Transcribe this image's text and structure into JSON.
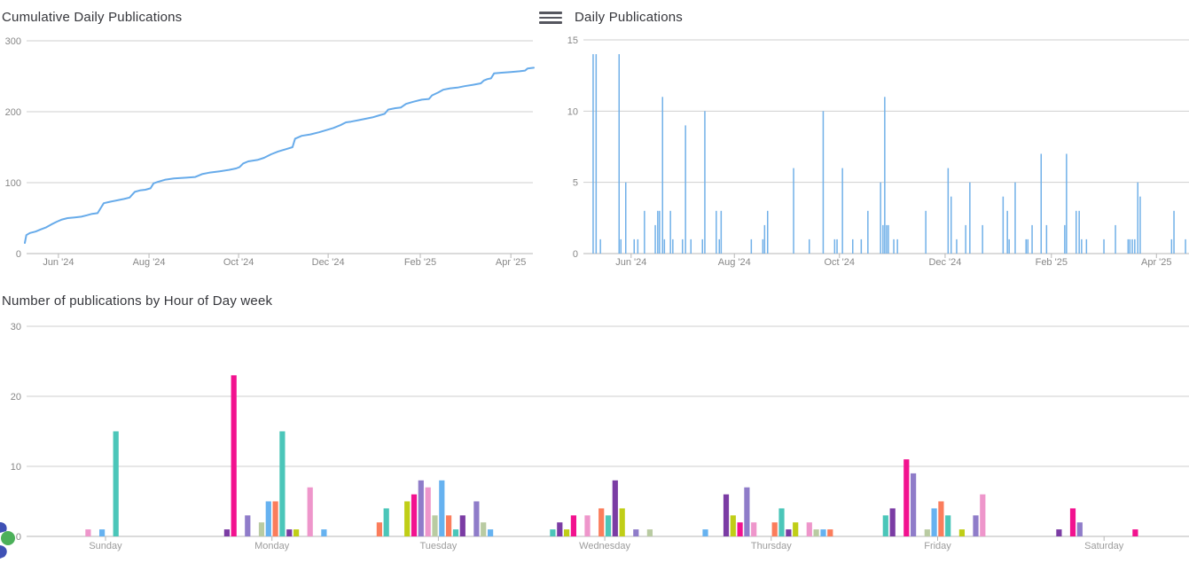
{
  "menu": {
    "icon": "hamburger-icon"
  },
  "logo": {
    "icon": "clipped-logo-fragment",
    "circle_color": "#4CB05A",
    "wedge_color": "#3F51B5"
  },
  "axis_style": {
    "label_color": "#878787",
    "grid_color": "#cfcfcf",
    "axis_color": "#b7b7b7"
  },
  "chart_data": [
    {
      "type": "line",
      "title": "Cumulative Daily Publications",
      "line_color": "#67ABEA",
      "ylim": [
        0,
        300
      ],
      "y_ticks": [
        0,
        100,
        200,
        300
      ],
      "x_ticks": [
        {
          "label": "Jun '24",
          "pos": 0.066
        },
        {
          "label": "Aug '24",
          "pos": 0.244
        },
        {
          "label": "Oct '24",
          "pos": 0.42
        },
        {
          "label": "Dec '24",
          "pos": 0.596
        },
        {
          "label": "Feb '25",
          "pos": 0.777
        },
        {
          "label": "Apr '25",
          "pos": 0.955
        }
      ],
      "points": [
        [
          0.0,
          15
        ],
        [
          0.003,
          26
        ],
        [
          0.01,
          29
        ],
        [
          0.021,
          31
        ],
        [
          0.031,
          34
        ],
        [
          0.042,
          37
        ],
        [
          0.052,
          41
        ],
        [
          0.063,
          45
        ],
        [
          0.073,
          48
        ],
        [
          0.084,
          50
        ],
        [
          0.098,
          51
        ],
        [
          0.111,
          52
        ],
        [
          0.122,
          54
        ],
        [
          0.132,
          56
        ],
        [
          0.143,
          57
        ],
        [
          0.148,
          63
        ],
        [
          0.155,
          71
        ],
        [
          0.167,
          73
        ],
        [
          0.181,
          75
        ],
        [
          0.195,
          77
        ],
        [
          0.206,
          79
        ],
        [
          0.211,
          83
        ],
        [
          0.216,
          87
        ],
        [
          0.226,
          89
        ],
        [
          0.237,
          90
        ],
        [
          0.247,
          92
        ],
        [
          0.253,
          99
        ],
        [
          0.261,
          101
        ],
        [
          0.275,
          104
        ],
        [
          0.293,
          106
        ],
        [
          0.317,
          107
        ],
        [
          0.335,
          108
        ],
        [
          0.348,
          112
        ],
        [
          0.362,
          114
        ],
        [
          0.383,
          116
        ],
        [
          0.401,
          118
        ],
        [
          0.415,
          120
        ],
        [
          0.422,
          122
        ],
        [
          0.429,
          127
        ],
        [
          0.439,
          130
        ],
        [
          0.457,
          132
        ],
        [
          0.47,
          135
        ],
        [
          0.484,
          140
        ],
        [
          0.498,
          144
        ],
        [
          0.512,
          147
        ],
        [
          0.526,
          150
        ],
        [
          0.531,
          162
        ],
        [
          0.544,
          166
        ],
        [
          0.561,
          168
        ],
        [
          0.578,
          171
        ],
        [
          0.592,
          174
        ],
        [
          0.606,
          177
        ],
        [
          0.62,
          181
        ],
        [
          0.631,
          185
        ],
        [
          0.641,
          186
        ],
        [
          0.655,
          188
        ],
        [
          0.669,
          190
        ],
        [
          0.683,
          192
        ],
        [
          0.697,
          195
        ],
        [
          0.707,
          197
        ],
        [
          0.714,
          203
        ],
        [
          0.728,
          205
        ],
        [
          0.739,
          206
        ],
        [
          0.749,
          211
        ],
        [
          0.763,
          214
        ],
        [
          0.78,
          217
        ],
        [
          0.794,
          218
        ],
        [
          0.8,
          223
        ],
        [
          0.812,
          227
        ],
        [
          0.822,
          231
        ],
        [
          0.836,
          233
        ],
        [
          0.85,
          234
        ],
        [
          0.864,
          236
        ],
        [
          0.881,
          238
        ],
        [
          0.896,
          240
        ],
        [
          0.902,
          244
        ],
        [
          0.909,
          246
        ],
        [
          0.916,
          247
        ],
        [
          0.922,
          254
        ],
        [
          0.937,
          255
        ],
        [
          0.955,
          256
        ],
        [
          0.972,
          257
        ],
        [
          0.983,
          258
        ],
        [
          0.988,
          261
        ],
        [
          1.0,
          262
        ]
      ]
    },
    {
      "type": "bar",
      "title": "Daily Publications",
      "bar_color": "#71B0E8",
      "ylim": [
        0,
        15
      ],
      "y_ticks": [
        0,
        5,
        10,
        15
      ],
      "x_ticks": [
        {
          "label": "Jun '24",
          "pos": 0.079
        },
        {
          "label": "Aug '24",
          "pos": 0.25
        },
        {
          "label": "Oct '24",
          "pos": 0.424
        },
        {
          "label": "Dec '24",
          "pos": 0.599
        },
        {
          "label": "Feb '25",
          "pos": 0.775
        },
        {
          "label": "Apr '25",
          "pos": 0.949
        }
      ],
      "bars": [
        [
          0.016,
          14
        ],
        [
          0.021,
          14
        ],
        [
          0.028,
          1
        ],
        [
          0.059,
          14
        ],
        [
          0.062,
          1
        ],
        [
          0.07,
          5
        ],
        [
          0.084,
          1
        ],
        [
          0.09,
          1
        ],
        [
          0.101,
          3
        ],
        [
          0.119,
          2
        ],
        [
          0.123,
          3
        ],
        [
          0.126,
          3
        ],
        [
          0.131,
          11
        ],
        [
          0.134,
          1
        ],
        [
          0.144,
          3
        ],
        [
          0.148,
          1
        ],
        [
          0.164,
          1
        ],
        [
          0.169,
          9
        ],
        [
          0.178,
          1
        ],
        [
          0.197,
          1
        ],
        [
          0.201,
          10
        ],
        [
          0.22,
          3
        ],
        [
          0.225,
          1
        ],
        [
          0.228,
          3
        ],
        [
          0.278,
          1
        ],
        [
          0.297,
          1
        ],
        [
          0.3,
          2
        ],
        [
          0.305,
          3
        ],
        [
          0.348,
          6
        ],
        [
          0.374,
          1
        ],
        [
          0.397,
          10
        ],
        [
          0.416,
          1
        ],
        [
          0.42,
          1
        ],
        [
          0.429,
          6
        ],
        [
          0.446,
          1
        ],
        [
          0.46,
          1
        ],
        [
          0.471,
          3
        ],
        [
          0.492,
          5
        ],
        [
          0.496,
          2
        ],
        [
          0.499,
          11
        ],
        [
          0.502,
          2
        ],
        [
          0.505,
          2
        ],
        [
          0.514,
          1
        ],
        [
          0.52,
          1
        ],
        [
          0.567,
          3
        ],
        [
          0.604,
          6
        ],
        [
          0.609,
          4
        ],
        [
          0.618,
          1
        ],
        [
          0.633,
          2
        ],
        [
          0.64,
          5
        ],
        [
          0.661,
          2
        ],
        [
          0.695,
          4
        ],
        [
          0.702,
          3
        ],
        [
          0.705,
          1
        ],
        [
          0.715,
          5
        ],
        [
          0.733,
          1
        ],
        [
          0.736,
          1
        ],
        [
          0.743,
          2
        ],
        [
          0.758,
          7
        ],
        [
          0.767,
          2
        ],
        [
          0.797,
          2
        ],
        [
          0.8,
          7
        ],
        [
          0.816,
          3
        ],
        [
          0.821,
          3
        ],
        [
          0.825,
          1
        ],
        [
          0.833,
          1
        ],
        [
          0.862,
          1
        ],
        [
          0.881,
          2
        ],
        [
          0.902,
          1
        ],
        [
          0.905,
          1
        ],
        [
          0.909,
          1
        ],
        [
          0.913,
          1
        ],
        [
          0.918,
          5
        ],
        [
          0.922,
          4
        ],
        [
          0.974,
          1
        ],
        [
          0.978,
          3
        ],
        [
          0.997,
          1
        ]
      ]
    },
    {
      "type": "grouped-bar",
      "title": "Number of publications by Hour of Day week",
      "ylim": [
        0,
        30
      ],
      "y_ticks": [
        0,
        10,
        20,
        30
      ],
      "categories": [
        "Sunday",
        "Monday",
        "Tuesday",
        "Wednesday",
        "Thursday",
        "Friday",
        "Saturday"
      ],
      "palette": {
        "violet": "#7B3CA4",
        "magenta": "#F2128F",
        "purple": "#8F7CC9",
        "sage": "#B9CBA2",
        "blue": "#66B2F0",
        "salmon": "#FB7D5C",
        "teal": "#4BC6B9",
        "lime": "#C0CE17",
        "pink": "#EE96CB"
      },
      "bars": [
        {
          "day": 0,
          "hour": 9,
          "color": "pink",
          "value": 1
        },
        {
          "day": 0,
          "hour": 11,
          "color": "blue",
          "value": 1
        },
        {
          "day": 0,
          "hour": 13,
          "color": "teal",
          "value": 15
        },
        {
          "day": 1,
          "hour": 5,
          "color": "violet",
          "value": 1
        },
        {
          "day": 1,
          "hour": 6,
          "color": "magenta",
          "value": 23
        },
        {
          "day": 1,
          "hour": 8,
          "color": "purple",
          "value": 3
        },
        {
          "day": 1,
          "hour": 10,
          "color": "sage",
          "value": 2
        },
        {
          "day": 1,
          "hour": 11,
          "color": "blue",
          "value": 5
        },
        {
          "day": 1,
          "hour": 12,
          "color": "salmon",
          "value": 5
        },
        {
          "day": 1,
          "hour": 13,
          "color": "teal",
          "value": 15
        },
        {
          "day": 1,
          "hour": 14,
          "color": "violet",
          "value": 1
        },
        {
          "day": 1,
          "hour": 15,
          "color": "lime",
          "value": 1
        },
        {
          "day": 1,
          "hour": 17,
          "color": "pink",
          "value": 7
        },
        {
          "day": 1,
          "hour": 19,
          "color": "blue",
          "value": 1
        },
        {
          "day": 2,
          "hour": 3,
          "color": "salmon",
          "value": 2
        },
        {
          "day": 2,
          "hour": 4,
          "color": "teal",
          "value": 4
        },
        {
          "day": 2,
          "hour": 7,
          "color": "lime",
          "value": 5
        },
        {
          "day": 2,
          "hour": 8,
          "color": "magenta",
          "value": 6
        },
        {
          "day": 2,
          "hour": 9,
          "color": "purple",
          "value": 8
        },
        {
          "day": 2,
          "hour": 10,
          "color": "pink",
          "value": 7
        },
        {
          "day": 2,
          "hour": 11,
          "color": "sage",
          "value": 3
        },
        {
          "day": 2,
          "hour": 12,
          "color": "blue",
          "value": 8
        },
        {
          "day": 2,
          "hour": 13,
          "color": "salmon",
          "value": 3
        },
        {
          "day": 2,
          "hour": 14,
          "color": "teal",
          "value": 1
        },
        {
          "day": 2,
          "hour": 15,
          "color": "violet",
          "value": 3
        },
        {
          "day": 2,
          "hour": 17,
          "color": "purple",
          "value": 5
        },
        {
          "day": 2,
          "hour": 18,
          "color": "sage",
          "value": 2
        },
        {
          "day": 2,
          "hour": 19,
          "color": "blue",
          "value": 1
        },
        {
          "day": 3,
          "hour": 4,
          "color": "teal",
          "value": 1
        },
        {
          "day": 3,
          "hour": 5,
          "color": "violet",
          "value": 2
        },
        {
          "day": 3,
          "hour": 6,
          "color": "lime",
          "value": 1
        },
        {
          "day": 3,
          "hour": 7,
          "color": "magenta",
          "value": 3
        },
        {
          "day": 3,
          "hour": 9,
          "color": "pink",
          "value": 3
        },
        {
          "day": 3,
          "hour": 11,
          "color": "salmon",
          "value": 4
        },
        {
          "day": 3,
          "hour": 12,
          "color": "teal",
          "value": 3
        },
        {
          "day": 3,
          "hour": 13,
          "color": "violet",
          "value": 8
        },
        {
          "day": 3,
          "hour": 14,
          "color": "lime",
          "value": 4
        },
        {
          "day": 3,
          "hour": 16,
          "color": "purple",
          "value": 1
        },
        {
          "day": 3,
          "hour": 18,
          "color": "sage",
          "value": 1
        },
        {
          "day": 4,
          "hour": 2,
          "color": "blue",
          "value": 1
        },
        {
          "day": 4,
          "hour": 5,
          "color": "violet",
          "value": 6
        },
        {
          "day": 4,
          "hour": 6,
          "color": "lime",
          "value": 3
        },
        {
          "day": 4,
          "hour": 7,
          "color": "magenta",
          "value": 2
        },
        {
          "day": 4,
          "hour": 8,
          "color": "purple",
          "value": 7
        },
        {
          "day": 4,
          "hour": 9,
          "color": "pink",
          "value": 2
        },
        {
          "day": 4,
          "hour": 12,
          "color": "salmon",
          "value": 2
        },
        {
          "day": 4,
          "hour": 13,
          "color": "teal",
          "value": 4
        },
        {
          "day": 4,
          "hour": 14,
          "color": "violet",
          "value": 1
        },
        {
          "day": 4,
          "hour": 15,
          "color": "lime",
          "value": 2
        },
        {
          "day": 4,
          "hour": 17,
          "color": "pink",
          "value": 2
        },
        {
          "day": 4,
          "hour": 18,
          "color": "sage",
          "value": 1
        },
        {
          "day": 4,
          "hour": 19,
          "color": "blue",
          "value": 1
        },
        {
          "day": 4,
          "hour": 20,
          "color": "salmon",
          "value": 1
        },
        {
          "day": 5,
          "hour": 4,
          "color": "teal",
          "value": 3
        },
        {
          "day": 5,
          "hour": 5,
          "color": "violet",
          "value": 4
        },
        {
          "day": 5,
          "hour": 7,
          "color": "magenta",
          "value": 11
        },
        {
          "day": 5,
          "hour": 8,
          "color": "purple",
          "value": 9
        },
        {
          "day": 5,
          "hour": 10,
          "color": "sage",
          "value": 1
        },
        {
          "day": 5,
          "hour": 11,
          "color": "blue",
          "value": 4
        },
        {
          "day": 5,
          "hour": 12,
          "color": "salmon",
          "value": 5
        },
        {
          "day": 5,
          "hour": 13,
          "color": "teal",
          "value": 3
        },
        {
          "day": 5,
          "hour": 15,
          "color": "lime",
          "value": 1
        },
        {
          "day": 5,
          "hour": 17,
          "color": "purple",
          "value": 3
        },
        {
          "day": 5,
          "hour": 18,
          "color": "pink",
          "value": 6
        },
        {
          "day": 6,
          "hour": 5,
          "color": "violet",
          "value": 1
        },
        {
          "day": 6,
          "hour": 7,
          "color": "magenta",
          "value": 4
        },
        {
          "day": 6,
          "hour": 8,
          "color": "purple",
          "value": 2
        },
        {
          "day": 6,
          "hour": 16,
          "color": "magenta",
          "value": 1
        }
      ]
    }
  ]
}
